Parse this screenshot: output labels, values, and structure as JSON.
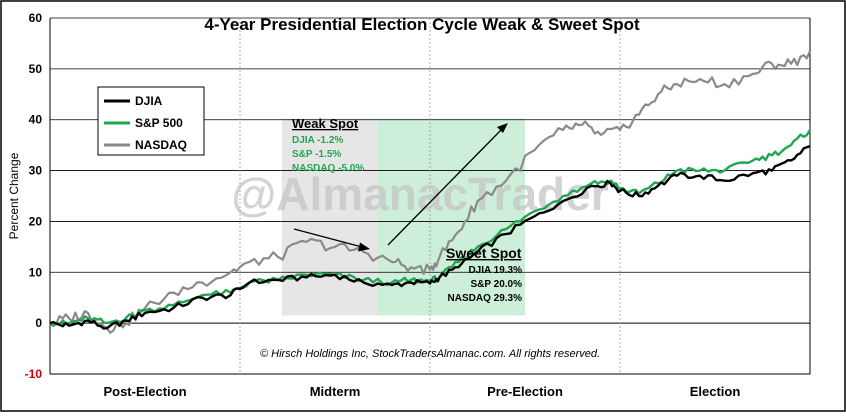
{
  "chart_data": {
    "type": "line",
    "title": "4-Year Presidential Election Cycle Weak & Sweet Spot",
    "ylabel": "Percent Change",
    "ylim": [
      -10,
      60
    ],
    "yticks": [
      -10,
      0,
      10,
      20,
      30,
      40,
      50,
      60
    ],
    "grid": true,
    "legend_position": "upper-left",
    "categories": [
      "Post-Election",
      "Midterm",
      "Pre-Election",
      "Election"
    ],
    "x_range": [
      0,
      4
    ],
    "series": [
      {
        "name": "DJIA",
        "color": "#000000",
        "points": [
          [
            0,
            0
          ],
          [
            0.1,
            -0.5
          ],
          [
            0.2,
            0.5
          ],
          [
            0.3,
            -1
          ],
          [
            0.4,
            0.5
          ],
          [
            0.5,
            2
          ],
          [
            0.65,
            3
          ],
          [
            0.8,
            5
          ],
          [
            0.95,
            5.5
          ],
          [
            1.05,
            8
          ],
          [
            1.2,
            8.5
          ],
          [
            1.35,
            9
          ],
          [
            1.5,
            9.5
          ],
          [
            1.65,
            8
          ],
          [
            1.8,
            7.5
          ],
          [
            1.9,
            8
          ],
          [
            2.0,
            7.8
          ],
          [
            2.05,
            9
          ],
          [
            2.15,
            11
          ],
          [
            2.25,
            14
          ],
          [
            2.4,
            17.5
          ],
          [
            2.55,
            21
          ],
          [
            2.7,
            24
          ],
          [
            2.85,
            27
          ],
          [
            2.95,
            27.5
          ],
          [
            3.0,
            26
          ],
          [
            3.1,
            25
          ],
          [
            3.2,
            27
          ],
          [
            3.3,
            29
          ],
          [
            3.42,
            29
          ],
          [
            3.55,
            28
          ],
          [
            3.7,
            29.5
          ],
          [
            3.8,
            30
          ],
          [
            3.9,
            32
          ],
          [
            4.0,
            34.8
          ]
        ]
      },
      {
        "name": "S&P 500",
        "color": "#22a652",
        "points": [
          [
            0,
            0
          ],
          [
            0.1,
            0
          ],
          [
            0.2,
            1
          ],
          [
            0.3,
            0
          ],
          [
            0.4,
            1
          ],
          [
            0.5,
            2.5
          ],
          [
            0.65,
            3.5
          ],
          [
            0.8,
            5.5
          ],
          [
            0.95,
            6
          ],
          [
            1.05,
            8
          ],
          [
            1.2,
            8.5
          ],
          [
            1.35,
            9.5
          ],
          [
            1.5,
            9.5
          ],
          [
            1.65,
            8.5
          ],
          [
            1.8,
            8
          ],
          [
            1.9,
            8.5
          ],
          [
            2.0,
            8.3
          ],
          [
            2.05,
            9
          ],
          [
            2.15,
            12
          ],
          [
            2.25,
            15
          ],
          [
            2.4,
            18.5
          ],
          [
            2.55,
            22
          ],
          [
            2.7,
            25
          ],
          [
            2.85,
            27.5
          ],
          [
            2.95,
            28
          ],
          [
            3.0,
            26.5
          ],
          [
            3.1,
            25.5
          ],
          [
            3.2,
            27.5
          ],
          [
            3.3,
            30
          ],
          [
            3.42,
            30
          ],
          [
            3.55,
            30
          ],
          [
            3.7,
            32
          ],
          [
            3.8,
            33
          ],
          [
            3.9,
            35
          ],
          [
            4.0,
            38
          ]
        ]
      },
      {
        "name": "NASDAQ",
        "color": "#8a8a8a",
        "points": [
          [
            0,
            0
          ],
          [
            0.1,
            1
          ],
          [
            0.2,
            2
          ],
          [
            0.3,
            -1
          ],
          [
            0.4,
            0
          ],
          [
            0.5,
            3
          ],
          [
            0.65,
            6
          ],
          [
            0.8,
            8
          ],
          [
            0.95,
            10
          ],
          [
            1.05,
            12
          ],
          [
            1.2,
            13
          ],
          [
            1.35,
            16
          ],
          [
            1.5,
            15
          ],
          [
            1.65,
            14
          ],
          [
            1.8,
            12
          ],
          [
            1.9,
            11
          ],
          [
            2.0,
            10.5
          ],
          [
            2.05,
            13
          ],
          [
            2.15,
            18
          ],
          [
            2.25,
            24
          ],
          [
            2.4,
            28
          ],
          [
            2.55,
            34
          ],
          [
            2.7,
            38
          ],
          [
            2.8,
            39
          ],
          [
            2.9,
            37
          ],
          [
            3.0,
            38
          ],
          [
            3.1,
            41
          ],
          [
            3.2,
            45
          ],
          [
            3.3,
            47
          ],
          [
            3.42,
            48
          ],
          [
            3.55,
            47
          ],
          [
            3.7,
            49
          ],
          [
            3.8,
            51
          ],
          [
            3.9,
            51
          ],
          [
            4.0,
            53.5
          ]
        ]
      }
    ],
    "annotations": {
      "weak_spot": {
        "title": "Weak Spot",
        "lines": [
          "DJIA -1.2%",
          "S&P -1.5%",
          "NASDAQ -5.0%"
        ],
        "x_range": [
          1.22,
          1.72
        ],
        "fill": "#e6e6e6"
      },
      "sweet_spot": {
        "title": "Sweet Spot",
        "lines": [
          "DJIA 19.3%",
          "S&P 20.0%",
          "NASDAQ 29.3%"
        ],
        "x_range": [
          1.72,
          2.5
        ],
        "fill": "#cdeed8"
      }
    },
    "watermark": "@AlmanacTrader",
    "copyright": "© Hirsch Holdings Inc, StockTradersAlmanac.com. All rights reserved."
  }
}
